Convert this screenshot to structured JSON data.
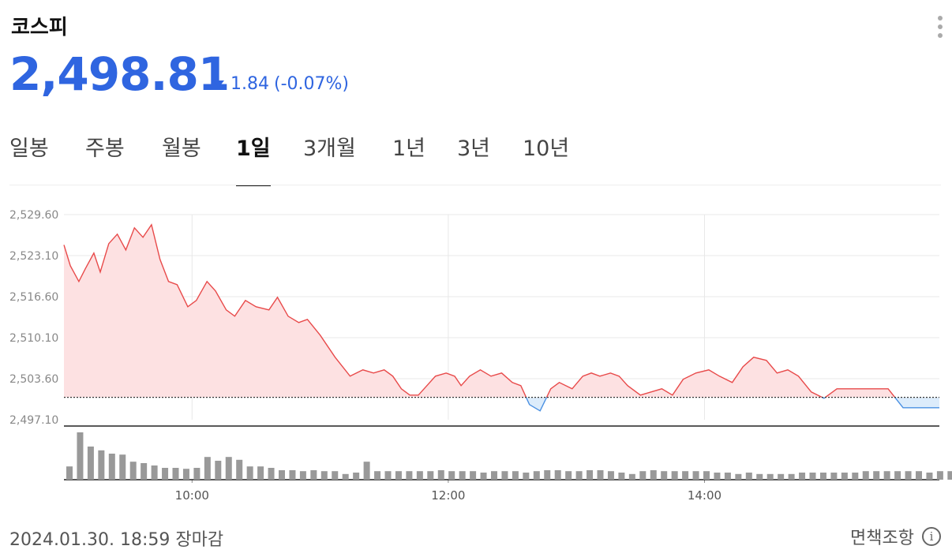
{
  "header": {
    "title": "코스피",
    "more_icon": "more-vertical-icon"
  },
  "quote": {
    "price": "2,498.81",
    "change": "1.84",
    "change_pct": "(-0.07%)",
    "direction": "down",
    "color": "#2f65e0"
  },
  "tabs": [
    {
      "label": "일봉",
      "active": false
    },
    {
      "label": "주봉",
      "active": false
    },
    {
      "label": "월봉",
      "active": false
    },
    {
      "label": "1일",
      "active": true
    },
    {
      "label": "3개월",
      "active": false
    },
    {
      "label": "1년",
      "active": false
    },
    {
      "label": "3년",
      "active": false
    },
    {
      "label": "10년",
      "active": false
    }
  ],
  "chart_data": {
    "type": "area",
    "y_tick_labels": [
      "2,529.60",
      "2,523.10",
      "2,516.60",
      "2,510.10",
      "2,503.60",
      "2,497.10"
    ],
    "ylim": [
      2497.1,
      2529.6
    ],
    "x_tick_labels": [
      "10:00",
      "12:00",
      "14:00"
    ],
    "x_ticks_min": [
      600,
      720,
      840
    ],
    "xlim_min": [
      540,
      950
    ],
    "previous_close": 2500.65,
    "colors": {
      "up_line": "#e84a4a",
      "up_fill": "#fde1e2",
      "down_line": "#4a90e2",
      "down_fill": "#dcecfb",
      "volume": "#999999"
    },
    "series": [
      {
        "minutes": [
          540,
          543,
          547,
          550,
          554,
          557,
          561,
          565,
          569,
          573,
          577,
          581,
          585,
          589,
          593,
          598,
          602,
          607,
          611,
          616,
          620,
          625,
          630,
          636,
          640,
          645,
          650,
          654,
          660,
          667,
          674,
          680,
          685,
          690,
          694,
          698,
          702,
          706,
          710,
          714,
          719,
          723,
          726,
          730,
          735,
          740,
          745,
          750,
          754,
          758,
          763,
          768,
          772,
          778,
          783,
          787,
          791,
          796,
          800,
          804,
          810,
          815,
          820,
          825,
          830,
          836,
          842,
          847,
          853,
          858,
          863,
          869,
          874,
          879,
          884,
          890,
          896,
          902,
          908,
          914,
          920,
          926,
          933,
          940,
          950
        ],
        "values": [
          2524.8,
          2521.5,
          2519.0,
          2521.0,
          2523.5,
          2520.5,
          2525.0,
          2526.5,
          2524.0,
          2527.5,
          2526.0,
          2528.0,
          2522.5,
          2519.0,
          2518.5,
          2515.0,
          2516.0,
          2519.0,
          2517.5,
          2514.5,
          2513.5,
          2516.0,
          2515.0,
          2514.5,
          2516.5,
          2513.5,
          2512.5,
          2513.0,
          2510.5,
          2507.0,
          2504.0,
          2505.0,
          2504.5,
          2505.0,
          2504.0,
          2502.0,
          2501.0,
          2501.0,
          2502.5,
          2504.0,
          2504.5,
          2504.0,
          2502.5,
          2504.0,
          2505.0,
          2504.0,
          2504.5,
          2503.0,
          2502.5,
          2499.5,
          2498.5,
          2502.0,
          2503.0,
          2502.0,
          2504.0,
          2504.5,
          2504.0,
          2504.5,
          2504.0,
          2502.5,
          2501.0,
          2501.5,
          2502.0,
          2501.0,
          2503.5,
          2504.5,
          2505.0,
          2504.0,
          2503.0,
          2505.5,
          2507.0,
          2506.5,
          2504.5,
          2505.0,
          2504.0,
          2501.5,
          2500.5,
          2502.0,
          2502.0,
          2502.0,
          2502.0,
          2502.0,
          2499.0,
          2499.0,
          2499.0
        ]
      }
    ],
    "volume_bars": [
      0.28,
      1.0,
      0.7,
      0.62,
      0.55,
      0.53,
      0.38,
      0.35,
      0.3,
      0.25,
      0.25,
      0.23,
      0.25,
      0.48,
      0.4,
      0.48,
      0.42,
      0.28,
      0.28,
      0.25,
      0.2,
      0.2,
      0.18,
      0.2,
      0.18,
      0.18,
      0.12,
      0.15,
      0.38,
      0.18,
      0.18,
      0.18,
      0.18,
      0.18,
      0.18,
      0.2,
      0.18,
      0.18,
      0.18,
      0.15,
      0.18,
      0.18,
      0.18,
      0.15,
      0.18,
      0.2,
      0.2,
      0.18,
      0.18,
      0.2,
      0.2,
      0.18,
      0.15,
      0.12,
      0.18,
      0.2,
      0.18,
      0.18,
      0.18,
      0.18,
      0.18,
      0.15,
      0.15,
      0.12,
      0.15,
      0.12,
      0.12,
      0.12,
      0.12,
      0.15,
      0.15,
      0.15,
      0.15,
      0.15,
      0.15,
      0.18,
      0.18,
      0.18,
      0.18,
      0.18,
      0.18,
      0.15,
      0.18,
      0.18,
      0.2,
      0.2,
      0.2,
      0.22,
      0.22,
      0.42
    ]
  },
  "footer": {
    "timestamp": "2024.01.30. 18:59 장마감",
    "disclaimer": "면책조항",
    "info_icon": "info-icon"
  }
}
